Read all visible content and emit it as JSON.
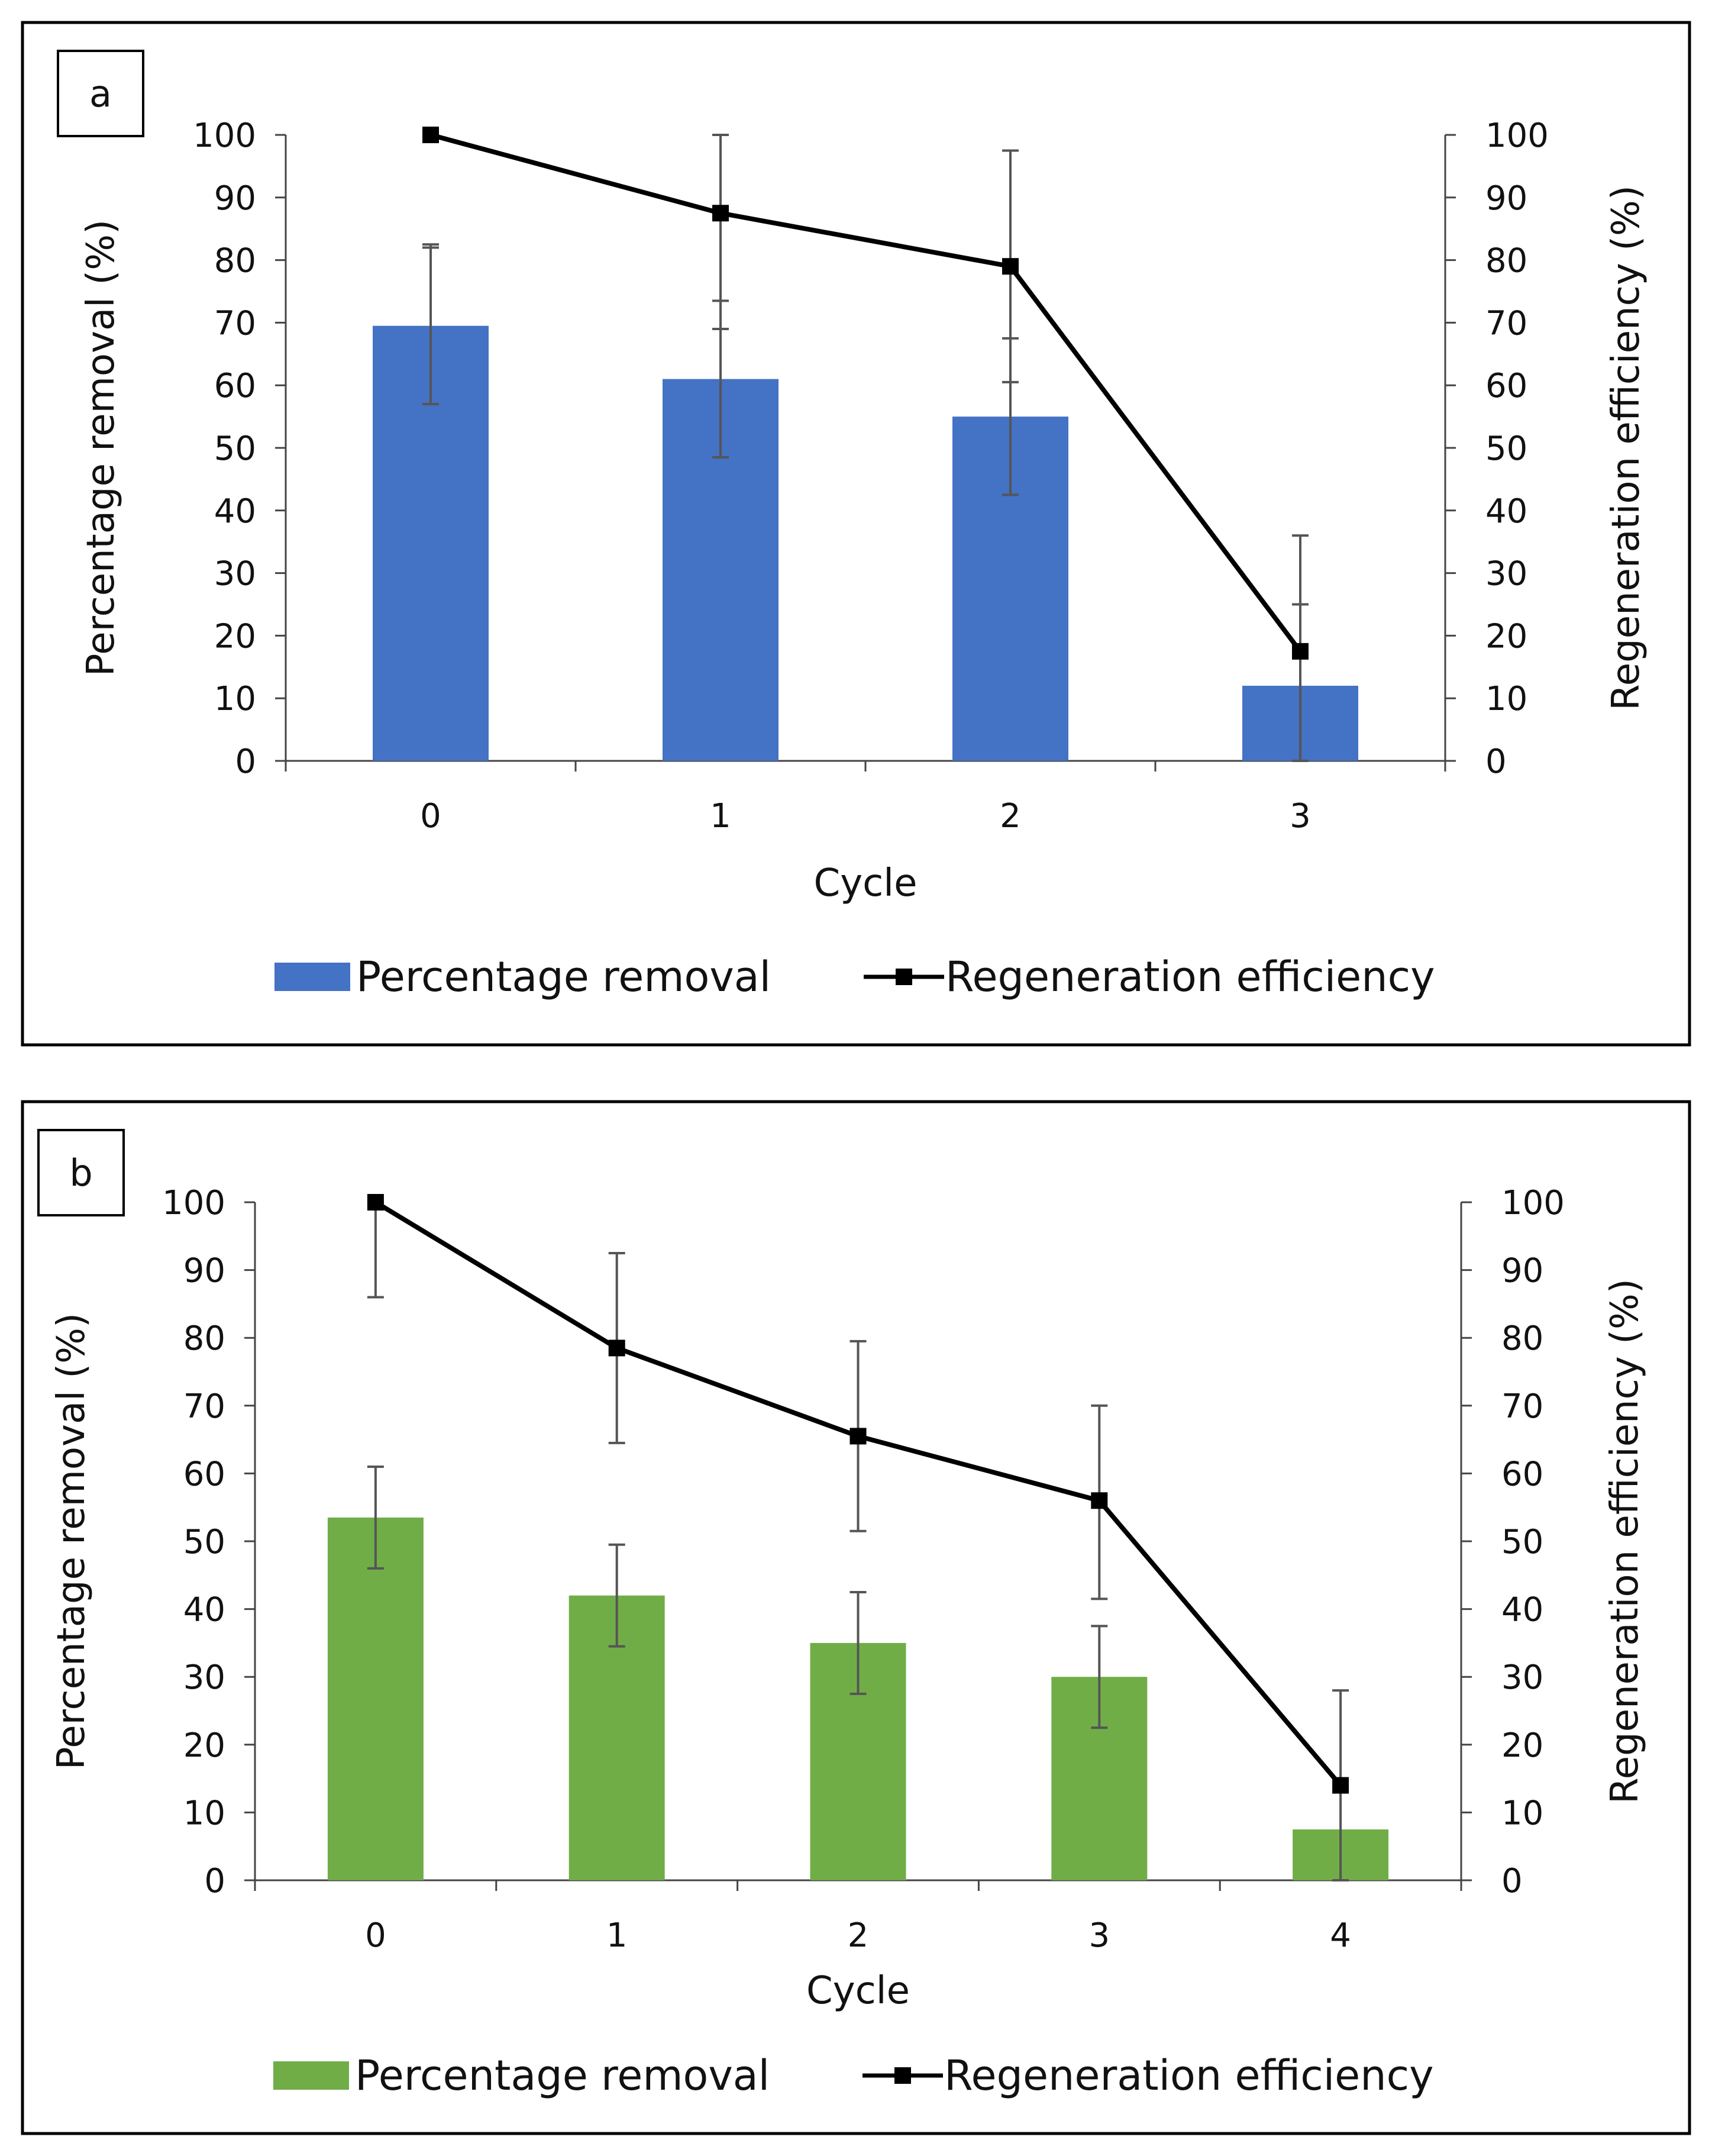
{
  "chart_data": [
    {
      "panel_label": "a",
      "type": "bar+line",
      "categories": [
        "0",
        "1",
        "2",
        "3"
      ],
      "xlabel": "Cycle",
      "ylabel_left": "Percentage removal (%)",
      "ylabel_right": "Regeneration efficiency (%)",
      "ylim": [
        0,
        100
      ],
      "yticks": [
        "0",
        "10",
        "20",
        "30",
        "40",
        "50",
        "60",
        "70",
        "80",
        "90",
        "100"
      ],
      "series": [
        {
          "name": "Percentage removal",
          "kind": "bar",
          "axis": "left",
          "color": "#4472C4",
          "values": [
            69.5,
            61,
            55,
            12
          ],
          "error_low": [
            57,
            48.5,
            42.5,
            0
          ],
          "error_high": [
            82,
            73.5,
            67.5,
            25
          ]
        },
        {
          "name": "Regeneration efficiency",
          "kind": "line",
          "axis": "right",
          "color": "#000000",
          "values": [
            100,
            87.5,
            79,
            17.5
          ],
          "error_low": [
            57,
            69,
            60.5,
            0
          ],
          "error_high": [
            82.5,
            100,
            97.5,
            36
          ]
        }
      ],
      "legend": [
        "Percentage removal",
        "Regeneration efficiency"
      ]
    },
    {
      "panel_label": "b",
      "type": "bar+line",
      "categories": [
        "0",
        "1",
        "2",
        "3",
        "4"
      ],
      "xlabel": "Cycle",
      "ylabel_left": "Percentage removal (%)",
      "ylabel_right": "Regeneration efficiency (%)",
      "ylim": [
        0,
        100
      ],
      "yticks": [
        "0",
        "10",
        "20",
        "30",
        "40",
        "50",
        "60",
        "70",
        "80",
        "90",
        "100"
      ],
      "series": [
        {
          "name": "Percentage removal",
          "kind": "bar",
          "axis": "left",
          "color": "#70AD47",
          "values": [
            53.5,
            42,
            35,
            30,
            7.5
          ],
          "error_low": [
            46,
            34.5,
            27.5,
            22.5,
            0
          ],
          "error_high": [
            61,
            49.5,
            42.5,
            37.5,
            0
          ]
        },
        {
          "name": "Regeneration efficiency",
          "kind": "line",
          "axis": "right",
          "color": "#000000",
          "values": [
            100,
            78.5,
            65.5,
            56,
            14
          ],
          "error_low": [
            86,
            64.5,
            51.5,
            41.5,
            0
          ],
          "error_high": [
            100,
            92.5,
            79.5,
            70,
            28
          ]
        }
      ],
      "legend": [
        "Percentage removal",
        "Regeneration efficiency"
      ]
    }
  ]
}
